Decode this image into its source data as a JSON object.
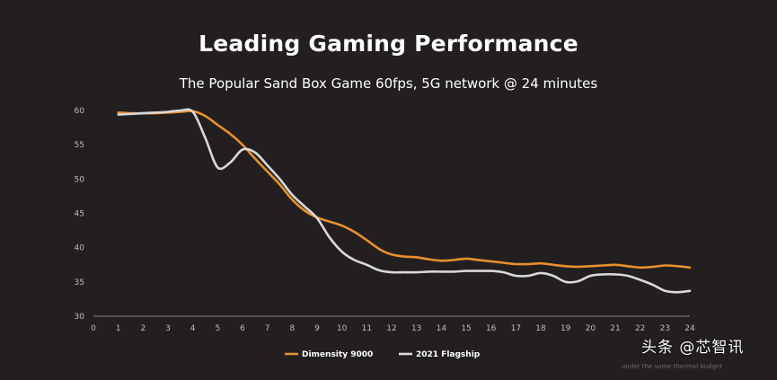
{
  "chart_data": {
    "type": "line",
    "title": "Leading Gaming Performance",
    "subtitle": "The Popular Sand Box Game 60fps, 5G network @ 24 minutes",
    "xlim": [
      0,
      24
    ],
    "ylim": [
      30,
      60
    ],
    "x_ticks": [
      "0",
      "1",
      "2",
      "3",
      "4",
      "5",
      "6",
      "7",
      "8",
      "9",
      "10",
      "11",
      "12",
      "13",
      "14",
      "15",
      "16",
      "17",
      "18",
      "19",
      "20",
      "21",
      "22",
      "23",
      "24"
    ],
    "y_ticks": [
      "30",
      "35",
      "40",
      "45",
      "50",
      "55",
      "60"
    ],
    "grid": false,
    "legend_position": "bottom",
    "series": [
      {
        "name": "Dimensity 9000",
        "color": "#e8902d",
        "x": [
          1,
          1.5,
          2,
          2.5,
          3,
          3.5,
          4,
          4.5,
          5,
          5.5,
          6,
          6.5,
          7,
          7.5,
          8,
          8.5,
          9,
          9.5,
          10,
          10.5,
          11,
          11.5,
          12,
          12.5,
          13,
          13.5,
          14,
          14.5,
          15,
          15.5,
          16,
          16.5,
          17,
          17.5,
          18,
          18.5,
          19,
          19.5,
          20,
          20.5,
          21,
          21.5,
          22,
          22.5,
          23,
          23.5,
          24
        ],
        "y": [
          59.7,
          59.6,
          59.6,
          59.6,
          59.7,
          59.8,
          59.9,
          59.2,
          57.9,
          56.6,
          55.0,
          53.0,
          51.1,
          49.2,
          47.0,
          45.4,
          44.4,
          43.8,
          43.2,
          42.3,
          41.1,
          39.8,
          39.0,
          38.7,
          38.6,
          38.3,
          38.1,
          38.2,
          38.4,
          38.2,
          38.0,
          37.8,
          37.6,
          37.6,
          37.7,
          37.5,
          37.3,
          37.2,
          37.3,
          37.4,
          37.5,
          37.3,
          37.1,
          37.2,
          37.4,
          37.3,
          37.1
        ]
      },
      {
        "name": "2021 Flagship",
        "color": "#d9d9d9",
        "x": [
          1,
          1.5,
          2,
          2.5,
          3,
          3.5,
          4,
          4.5,
          5,
          5.5,
          6,
          6.5,
          7,
          7.5,
          8,
          8.5,
          9,
          9.5,
          10,
          10.5,
          11,
          11.5,
          12,
          12.5,
          13,
          13.5,
          14,
          14.5,
          15,
          15.5,
          16,
          16.5,
          17,
          17.5,
          18,
          18.5,
          19,
          19.5,
          20,
          20.5,
          21,
          21.5,
          22,
          22.5,
          23,
          23.5,
          24
        ],
        "y": [
          59.4,
          59.5,
          59.6,
          59.7,
          59.8,
          60.0,
          59.8,
          56.0,
          51.7,
          52.4,
          54.3,
          53.9,
          52.0,
          50.0,
          47.7,
          46.0,
          44.3,
          41.5,
          39.4,
          38.2,
          37.5,
          36.7,
          36.4,
          36.4,
          36.4,
          36.5,
          36.5,
          36.5,
          36.6,
          36.6,
          36.6,
          36.4,
          35.9,
          35.9,
          36.3,
          35.9,
          35.0,
          35.1,
          35.9,
          36.1,
          36.1,
          35.9,
          35.3,
          34.6,
          33.7,
          33.5,
          33.7
        ]
      }
    ]
  },
  "footnote": "under the same thermal budget",
  "watermark": "头条 @芯智讯"
}
